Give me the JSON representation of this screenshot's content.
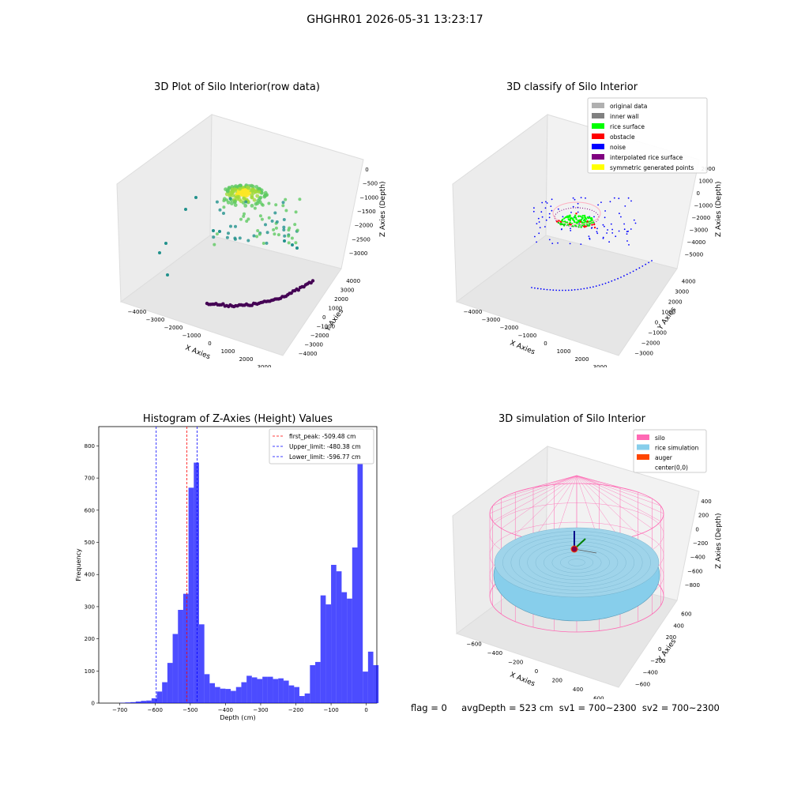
{
  "window": {
    "title": "GHGHR01 2026-05-31 13:23:17"
  },
  "footer": {
    "text": "flag = 0     avgDepth = 523 cm  sv1 = 700~2300  sv2 = 700~2300"
  },
  "colors": {
    "hist": "#0000ff",
    "peak": "#ff0000",
    "limit": "#0000ff",
    "silo": "#ff69b4",
    "rice": "#87ceeb",
    "auger": "#ff4500"
  },
  "chart_data": [
    {
      "type": "scatter",
      "title": "3D Plot of Silo Interior(row data)",
      "xlabel": "X Axies",
      "ylabel": "Y Axies",
      "zlabel": "Z Axies (Depth)",
      "x_ticks": [
        "−4000",
        "−3000",
        "−2000",
        "−1000",
        "0",
        "1000",
        "2000",
        "3000"
      ],
      "y_ticks": [
        "−4000",
        "−3000",
        "−2000",
        "−1000",
        "0",
        "1000",
        "2000",
        "3000",
        "4000"
      ],
      "z_ticks": [
        "0",
        "−500",
        "−1000",
        "−1500",
        "−2000",
        "−2500",
        "−3000"
      ],
      "colormap": "viridis"
    },
    {
      "type": "scatter",
      "title": "3D classify of Silo Interior",
      "xlabel": "X Axies",
      "ylabel": "Y Axies",
      "zlabel": "Z Axies (Depth)",
      "x_ticks": [
        "−4000",
        "−3000",
        "−2000",
        "−1000",
        "0",
        "1000",
        "2000",
        "3000"
      ],
      "y_ticks": [
        "−3000",
        "−2000",
        "−1000",
        "0",
        "1000",
        "2000",
        "3000",
        "4000"
      ],
      "z_ticks": [
        "2000",
        "1000",
        "0",
        "−1000",
        "−2000",
        "−3000",
        "−4000",
        "−5000"
      ],
      "legend": [
        {
          "label": "original data",
          "color": "#b0b0b0"
        },
        {
          "label": "inner wall",
          "color": "#808080"
        },
        {
          "label": "rice surface",
          "color": "#00ff00"
        },
        {
          "label": "obstacle",
          "color": "#ff0000"
        },
        {
          "label": "noise",
          "color": "#0000ff"
        },
        {
          "label": "interpolated rice surface",
          "color": "#800080"
        },
        {
          "label": "symmetric generated points",
          "color": "#ffff00"
        }
      ]
    },
    {
      "type": "bar",
      "title": "Histogram of Z-Axies (Height) Values",
      "xlabel": "Depth (cm)",
      "ylabel": "Frequency",
      "xlim": [
        -760,
        30
      ],
      "ylim": [
        0,
        860
      ],
      "x_ticks": [
        -700,
        -600,
        -500,
        -400,
        -300,
        -200,
        -100,
        0
      ],
      "y_ticks": [
        0,
        100,
        200,
        300,
        400,
        500,
        600,
        700,
        800
      ],
      "bin_start": -700,
      "bin_width": 15,
      "counts": [
        1,
        2,
        3,
        5,
        7,
        8,
        15,
        36,
        65,
        125,
        215,
        290,
        340,
        670,
        748,
        245,
        90,
        62,
        50,
        45,
        44,
        38,
        50,
        65,
        85,
        80,
        75,
        82,
        82,
        75,
        77,
        70,
        55,
        50,
        22,
        30,
        118,
        128,
        335,
        307,
        430,
        410,
        345,
        325,
        484,
        810,
        98,
        160,
        118
      ],
      "vlines": [
        {
          "label": "first_peak: -509.48 cm",
          "x": -509.48,
          "color": "#ff0000"
        },
        {
          "label": "Upper_limit: -480.38 cm",
          "x": -480.38,
          "color": "#0000ff"
        },
        {
          "label": "Lower_limit: -596.77 cm",
          "x": -596.77,
          "color": "#0000ff"
        }
      ]
    },
    {
      "type": "area",
      "title": "3D simulation of Silo Interior",
      "xlabel": "X Axies",
      "ylabel": "Y Axies",
      "zlabel": "Z Axies (Depth)",
      "x_ticks": [
        "−600",
        "−400",
        "−200",
        "0",
        "200",
        "400",
        "600"
      ],
      "y_ticks": [
        "−600",
        "−400",
        "−200",
        "0",
        "200",
        "400",
        "600"
      ],
      "z_ticks": [
        "400",
        "200",
        "0",
        "−200",
        "−400",
        "−600",
        "−800"
      ],
      "legend": [
        {
          "label": "silo",
          "color": "#ff69b4"
        },
        {
          "label": "rice simulation",
          "color": "#87ceeb"
        },
        {
          "label": "auger",
          "color": "#ff4500"
        },
        {
          "label": "center(0,0)",
          "color": ""
        }
      ]
    }
  ]
}
